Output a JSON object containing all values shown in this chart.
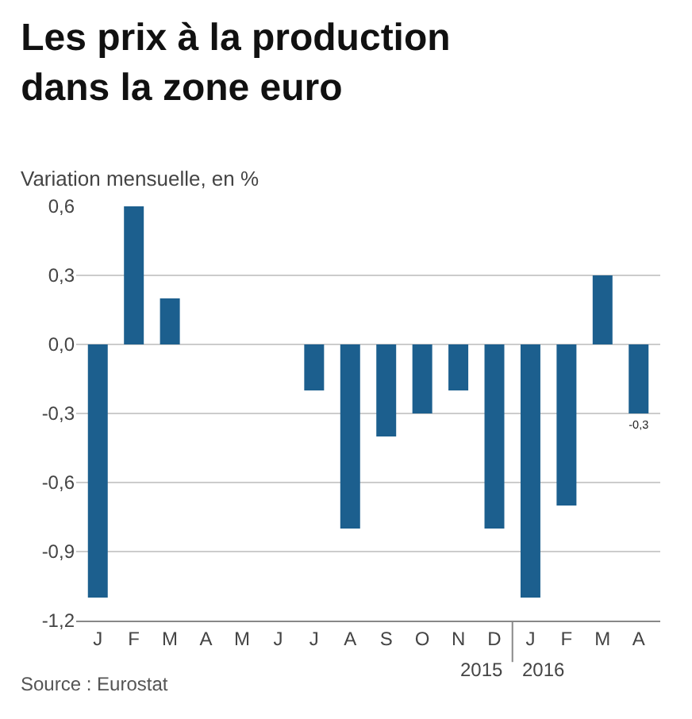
{
  "chart_data": {
    "type": "bar",
    "title": "Les prix à la production\ndans la zone euro",
    "subtitle": "Variation mensuelle, en %",
    "categories": [
      "J",
      "F",
      "M",
      "A",
      "M",
      "J",
      "J",
      "A",
      "S",
      "O",
      "N",
      "D",
      "J",
      "F",
      "M",
      "A"
    ],
    "values": [
      -1.1,
      0.6,
      0.2,
      0,
      0,
      0,
      -0.2,
      -0.8,
      -0.4,
      -0.3,
      -0.2,
      -0.8,
      -1.1,
      -0.7,
      0.3,
      -0.3
    ],
    "value_labels": [
      null,
      null,
      null,
      null,
      null,
      null,
      null,
      null,
      null,
      null,
      null,
      null,
      null,
      null,
      null,
      "-0,3"
    ],
    "color": "#1c5f8e",
    "ylim": [
      -1.2,
      0.6
    ],
    "yticks": [
      {
        "value": -1.2,
        "label": "-1,2"
      },
      {
        "value": -0.9,
        "label": "-0,9"
      },
      {
        "value": -0.6,
        "label": "-0,6"
      },
      {
        "value": -0.3,
        "label": "-0,3"
      },
      {
        "value": 0,
        "label": "0,0"
      },
      {
        "value": 0.3,
        "label": "0,3"
      },
      {
        "value": 0.6,
        "label": "0,6"
      }
    ],
    "grid": "y",
    "legend": false,
    "annotations": [
      "2015",
      "2016",
      "Source : Eurostat"
    ]
  }
}
